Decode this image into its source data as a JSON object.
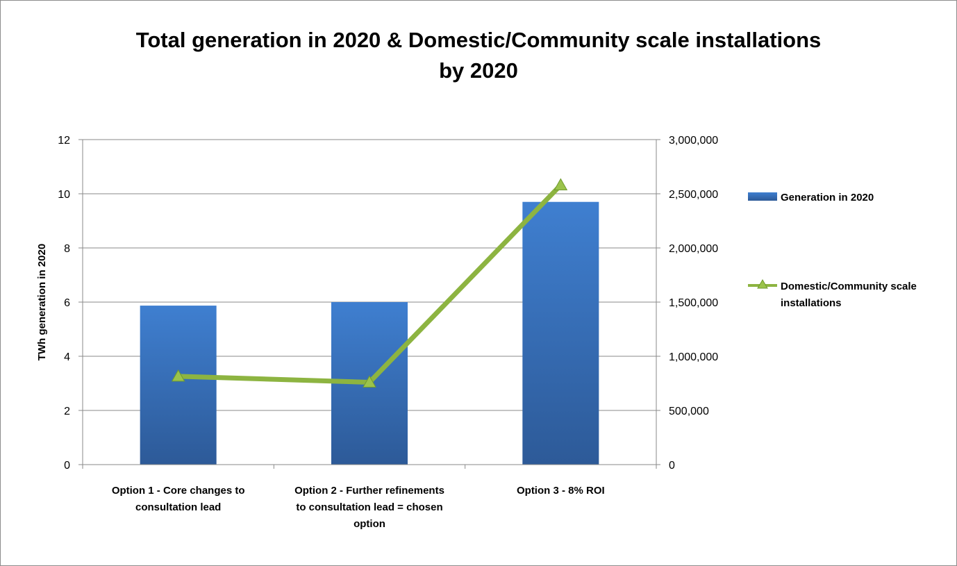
{
  "chart_data": {
    "type": "bar",
    "title_lines": [
      "Total generation in 2020 & Domestic/Community scale installations",
      "by 2020"
    ],
    "categories": [
      [
        "Option 1 - Core changes to",
        "consultation lead"
      ],
      [
        "Option 2 - Further refinements",
        "to consultation lead = chosen",
        "option"
      ],
      [
        "Option 3 - 8% ROI"
      ]
    ],
    "ylabel": "TWh generation in 2020",
    "y2label": "",
    "ylim": [
      0,
      12
    ],
    "y2lim": [
      0,
      3000000
    ],
    "y_ticks": [
      "0",
      "2",
      "4",
      "6",
      "8",
      "10",
      "12"
    ],
    "y2_ticks": [
      "0",
      "500,000",
      "1,000,000",
      "1,500,000",
      "2,000,000",
      "2,500,000",
      "3,000,000"
    ],
    "grid": true,
    "legend_position": "right",
    "series": [
      {
        "name": "Generation in 2020",
        "type": "bar",
        "axis": "left",
        "color": "#3a6fb8",
        "values": [
          5.87,
          6.0,
          9.7
        ]
      },
      {
        "name": "Domestic/Community scale installations",
        "legend_lines": [
          "Domestic/Community scale",
          "installations"
        ],
        "type": "line",
        "axis": "right",
        "marker": "triangle",
        "color": "#8db441",
        "values": [
          815000,
          760000,
          2580000
        ]
      }
    ]
  }
}
